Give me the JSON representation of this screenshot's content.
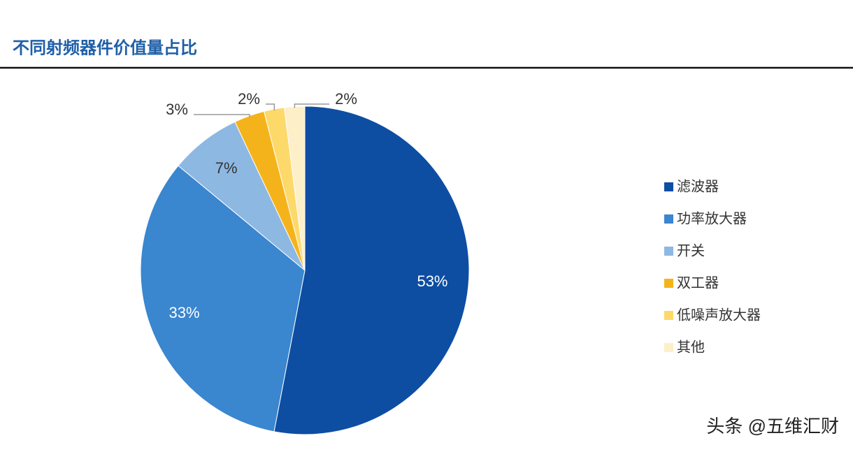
{
  "chart_data": {
    "type": "pie",
    "title": "不同射频器件价值量占比",
    "categories": [
      "滤波器",
      "功率放大器",
      "开关",
      "双工器",
      "低噪声放大器",
      "其他"
    ],
    "values": [
      53,
      33,
      7,
      3,
      2,
      2
    ],
    "value_labels": [
      "53%",
      "33%",
      "7%",
      "3%",
      "2%",
      "2%"
    ],
    "colors": [
      "#0d4ea3",
      "#3a86cf",
      "#8db8e2",
      "#f5b31b",
      "#fdd96a",
      "#fdefc8"
    ],
    "legend": "right",
    "watermark": "头条 @五维汇财"
  }
}
